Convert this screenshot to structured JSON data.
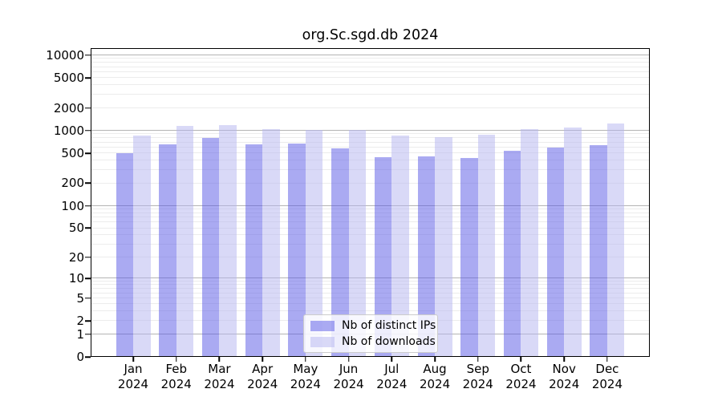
{
  "chart_data": {
    "type": "bar",
    "title": "org.Sc.sgd.db 2024",
    "x_year_label": "2024",
    "categories": [
      "Jan",
      "Feb",
      "Mar",
      "Apr",
      "May",
      "Jun",
      "Jul",
      "Aug",
      "Sep",
      "Oct",
      "Nov",
      "Dec"
    ],
    "series": [
      {
        "name": "Nb of distinct IPs",
        "color": "rgba(85,85,230,0.5)",
        "values": [
          500,
          665,
          800,
          660,
          675,
          585,
          450,
          460,
          435,
          535,
          595,
          635
        ]
      },
      {
        "name": "Nb of downloads",
        "color": "rgba(180,180,240,0.5)",
        "values": [
          870,
          1150,
          1200,
          1040,
          1015,
          1030,
          855,
          830,
          885,
          1060,
          1110,
          1250
        ]
      }
    ],
    "y_axis": {
      "scale": "log10(value+1)",
      "tick_labels": [
        10000,
        5000,
        2000,
        1000,
        500,
        200,
        100,
        50,
        20,
        10,
        5,
        2,
        1,
        0
      ],
      "major_gridlines": [
        1,
        10,
        100,
        1000,
        10000
      ],
      "range_top": 12500
    },
    "legend_position": "bottom-center",
    "grid": true
  }
}
